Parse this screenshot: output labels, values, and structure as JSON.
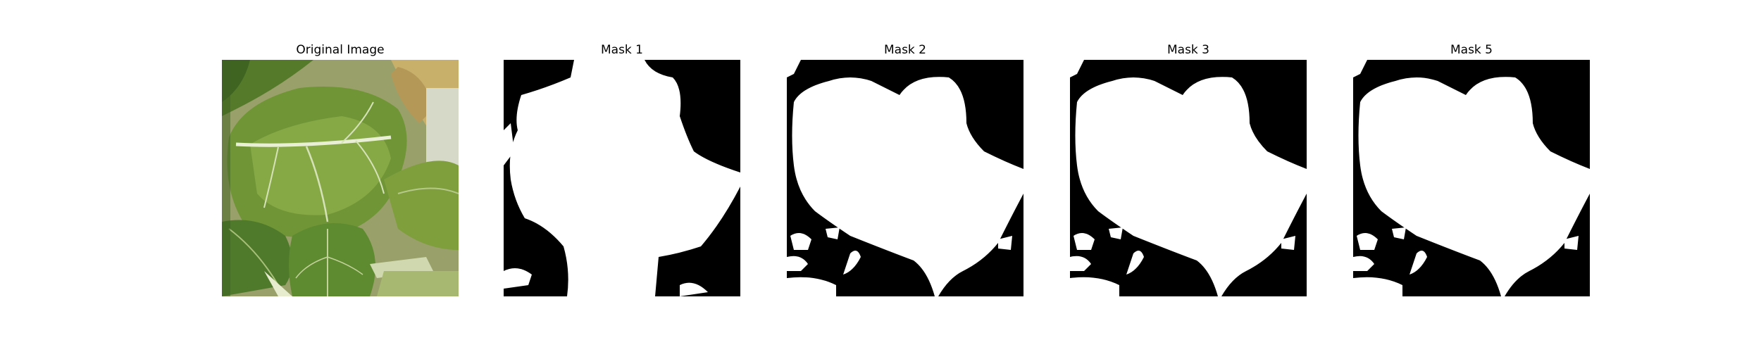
{
  "panels": [
    {
      "title": "Original Image",
      "kind": "photo"
    },
    {
      "title": "Mask 1",
      "kind": "mask"
    },
    {
      "title": "Mask 2",
      "kind": "mask"
    },
    {
      "title": "Mask 3",
      "kind": "mask"
    },
    {
      "title": "Mask 5",
      "kind": "mask"
    }
  ],
  "colors": {
    "mask_background": "#000000",
    "mask_foreground": "#ffffff",
    "leaf_dark": "#4f7a2c",
    "leaf_mid": "#7e9f3c",
    "leaf_light": "#a9b85a",
    "dry_leaf": "#c8b06a",
    "vein": "#e8efd5"
  }
}
